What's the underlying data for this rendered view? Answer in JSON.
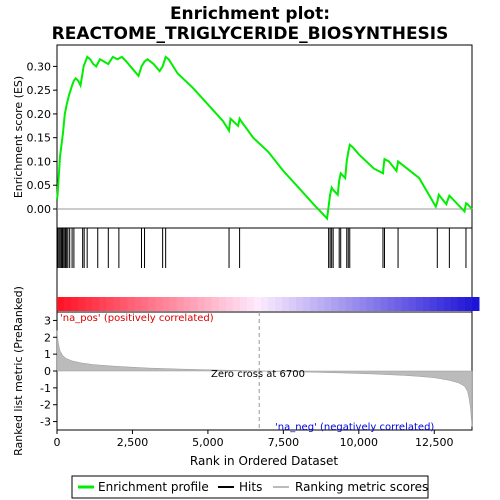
{
  "title_line1": "Enrichment plot:",
  "title_line2": "REACTOME_TRIGLYCERIDE_BIOSYNTHESIS",
  "colors": {
    "enrichment_line": "#00ee00",
    "hits": "#000000",
    "ranking_fill": "#bbbbbb",
    "pos_label": "#dd0000",
    "neg_label": "#0000dd"
  },
  "chart_data": [
    {
      "type": "line",
      "name": "enrichment_score_panel",
      "ylabel": "Enrichment score (ES)",
      "xlim": [
        0,
        13750
      ],
      "ylim": [
        -0.04,
        0.345
      ],
      "yticks": [
        0.0,
        0.05,
        0.1,
        0.15,
        0.2,
        0.25,
        0.3
      ],
      "ytick_labels": [
        "0.00",
        "0.05",
        "0.10",
        "0.15",
        "0.20",
        "0.25",
        "0.30"
      ],
      "series": [
        {
          "name": "Enrichment profile",
          "x": [
            0,
            20,
            40,
            60,
            80,
            100,
            120,
            140,
            160,
            180,
            200,
            230,
            260,
            290,
            320,
            360,
            400,
            450,
            500,
            560,
            620,
            700,
            780,
            830,
            880,
            940,
            1000,
            1100,
            1200,
            1300,
            1420,
            1560,
            1700,
            1850,
            2000,
            2150,
            2300,
            2500,
            2700,
            2800,
            2900,
            3000,
            3200,
            3400,
            3500,
            3600,
            3700,
            3800,
            4000,
            4500,
            5000,
            5500,
            5700,
            5750,
            6000,
            6050,
            6100,
            6500,
            7000,
            7500,
            8000,
            8500,
            8950,
            9000,
            9050,
            9100,
            9150,
            9300,
            9350,
            9400,
            9550,
            9600,
            9650,
            9700,
            9800,
            10000,
            10500,
            10800,
            10820,
            10850,
            11000,
            11250,
            11300,
            11500,
            12000,
            12550,
            12600,
            12650,
            12900,
            12950,
            13000,
            13200,
            13500,
            13550,
            13600,
            13750
          ],
          "y": [
            0.02,
            0.03,
            0.05,
            0.07,
            0.09,
            0.11,
            0.12,
            0.13,
            0.14,
            0.15,
            0.16,
            0.18,
            0.2,
            0.21,
            0.22,
            0.23,
            0.24,
            0.25,
            0.26,
            0.27,
            0.275,
            0.27,
            0.26,
            0.28,
            0.3,
            0.31,
            0.32,
            0.315,
            0.305,
            0.3,
            0.315,
            0.31,
            0.305,
            0.32,
            0.315,
            0.32,
            0.31,
            0.295,
            0.28,
            0.3,
            0.31,
            0.315,
            0.305,
            0.29,
            0.3,
            0.32,
            0.315,
            0.305,
            0.285,
            0.255,
            0.22,
            0.185,
            0.165,
            0.19,
            0.175,
            0.19,
            0.185,
            0.15,
            0.12,
            0.08,
            0.045,
            0.01,
            -0.02,
            0.005,
            0.03,
            0.045,
            0.04,
            0.03,
            0.06,
            0.075,
            0.065,
            0.1,
            0.12,
            0.135,
            0.13,
            0.115,
            0.085,
            0.075,
            0.09,
            0.105,
            0.1,
            0.08,
            0.1,
            0.09,
            0.065,
            0.005,
            0.015,
            0.03,
            0.01,
            0.02,
            0.028,
            0.015,
            -0.005,
            0.012,
            0.01,
            0.0
          ]
        }
      ]
    },
    {
      "type": "scatter",
      "name": "hits_panel",
      "xlim": [
        0,
        13750
      ],
      "hit_positions": [
        20,
        60,
        100,
        140,
        170,
        200,
        240,
        280,
        320,
        360,
        420,
        500,
        560,
        850,
        900,
        1000,
        1350,
        1700,
        2050,
        2800,
        2900,
        3500,
        3600,
        5700,
        6050,
        9000,
        9050,
        9100,
        9150,
        9350,
        9400,
        9600,
        9650,
        9700,
        10800,
        10850,
        11300,
        12600,
        13000,
        13550
      ]
    },
    {
      "type": "area",
      "name": "ranked_list_metric_panel",
      "ylabel": "Ranked list metric (PreRanked)",
      "xlabel": "Rank in Ordered Dataset",
      "xlim": [
        0,
        13750
      ],
      "ylim": [
        -3.5,
        3.5
      ],
      "yticks": [
        3,
        2,
        1,
        0,
        -1,
        -2,
        -3
      ],
      "ytick_labels": [
        "3",
        "2",
        "1",
        "0",
        "-1",
        "-2",
        "-3"
      ],
      "xticks": [
        0,
        2500,
        5000,
        7500,
        10000,
        12500
      ],
      "xtick_labels": [
        "0",
        "2,500",
        "5,000",
        "7,500",
        "10,000",
        "12,500"
      ],
      "series": [
        {
          "name": "Ranking metric scores",
          "x": [
            0,
            20,
            50,
            100,
            200,
            300,
            500,
            800,
            1200,
            2000,
            3000,
            4000,
            5000,
            6000,
            6700,
            7500,
            8500,
            9500,
            10500,
            11500,
            12000,
            12500,
            13000,
            13300,
            13500,
            13600,
            13650,
            13700,
            13750
          ],
          "y": [
            2.4,
            2.0,
            1.6,
            1.2,
            0.9,
            0.75,
            0.6,
            0.48,
            0.38,
            0.27,
            0.18,
            0.12,
            0.07,
            0.03,
            0.0,
            -0.03,
            -0.07,
            -0.12,
            -0.18,
            -0.26,
            -0.32,
            -0.4,
            -0.55,
            -0.7,
            -0.9,
            -1.2,
            -1.6,
            -2.2,
            -3.3
          ]
        }
      ],
      "zero_cross_label": "Zero cross at 6700",
      "zero_cross_x": 6700,
      "pos_label": "'na_pos' (positively correlated)",
      "neg_label": "'na_neg' (negatively correlated)"
    }
  ],
  "legend": {
    "placement": "bottom",
    "items": [
      {
        "label": "Enrichment profile"
      },
      {
        "label": "Hits"
      },
      {
        "label": "Ranking metric scores"
      }
    ]
  }
}
